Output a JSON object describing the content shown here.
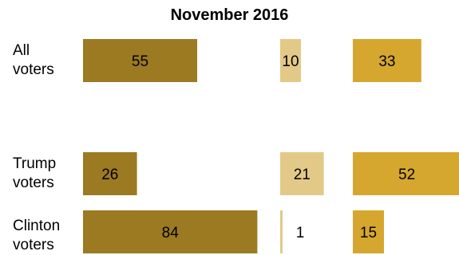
{
  "chart_data": {
    "type": "bar",
    "title_partial": "...",
    "title": "November 2016",
    "xlabel": "",
    "ylabel": "",
    "categories": [
      {
        "line1": "All",
        "line2": "voters"
      },
      {
        "line1": "Trump",
        "line2": "voters"
      },
      {
        "line1": "Clinton",
        "line2": "voters"
      }
    ],
    "series": [
      {
        "values": [
          55,
          10,
          33
        ],
        "color": "#9c7a22"
      },
      {
        "values": [
          26,
          21,
          52
        ],
        "color": "#e3c987"
      },
      {
        "values": [
          84,
          1,
          15
        ],
        "color": "#d6a72e"
      }
    ],
    "bar_values_by_row": [
      [
        55,
        10,
        33
      ],
      [
        26,
        21,
        52
      ],
      [
        84,
        1,
        15
      ]
    ],
    "colors": [
      "#9c7a22",
      "#e3c987",
      "#d6a72e"
    ],
    "grid": false,
    "legend": "none"
  }
}
